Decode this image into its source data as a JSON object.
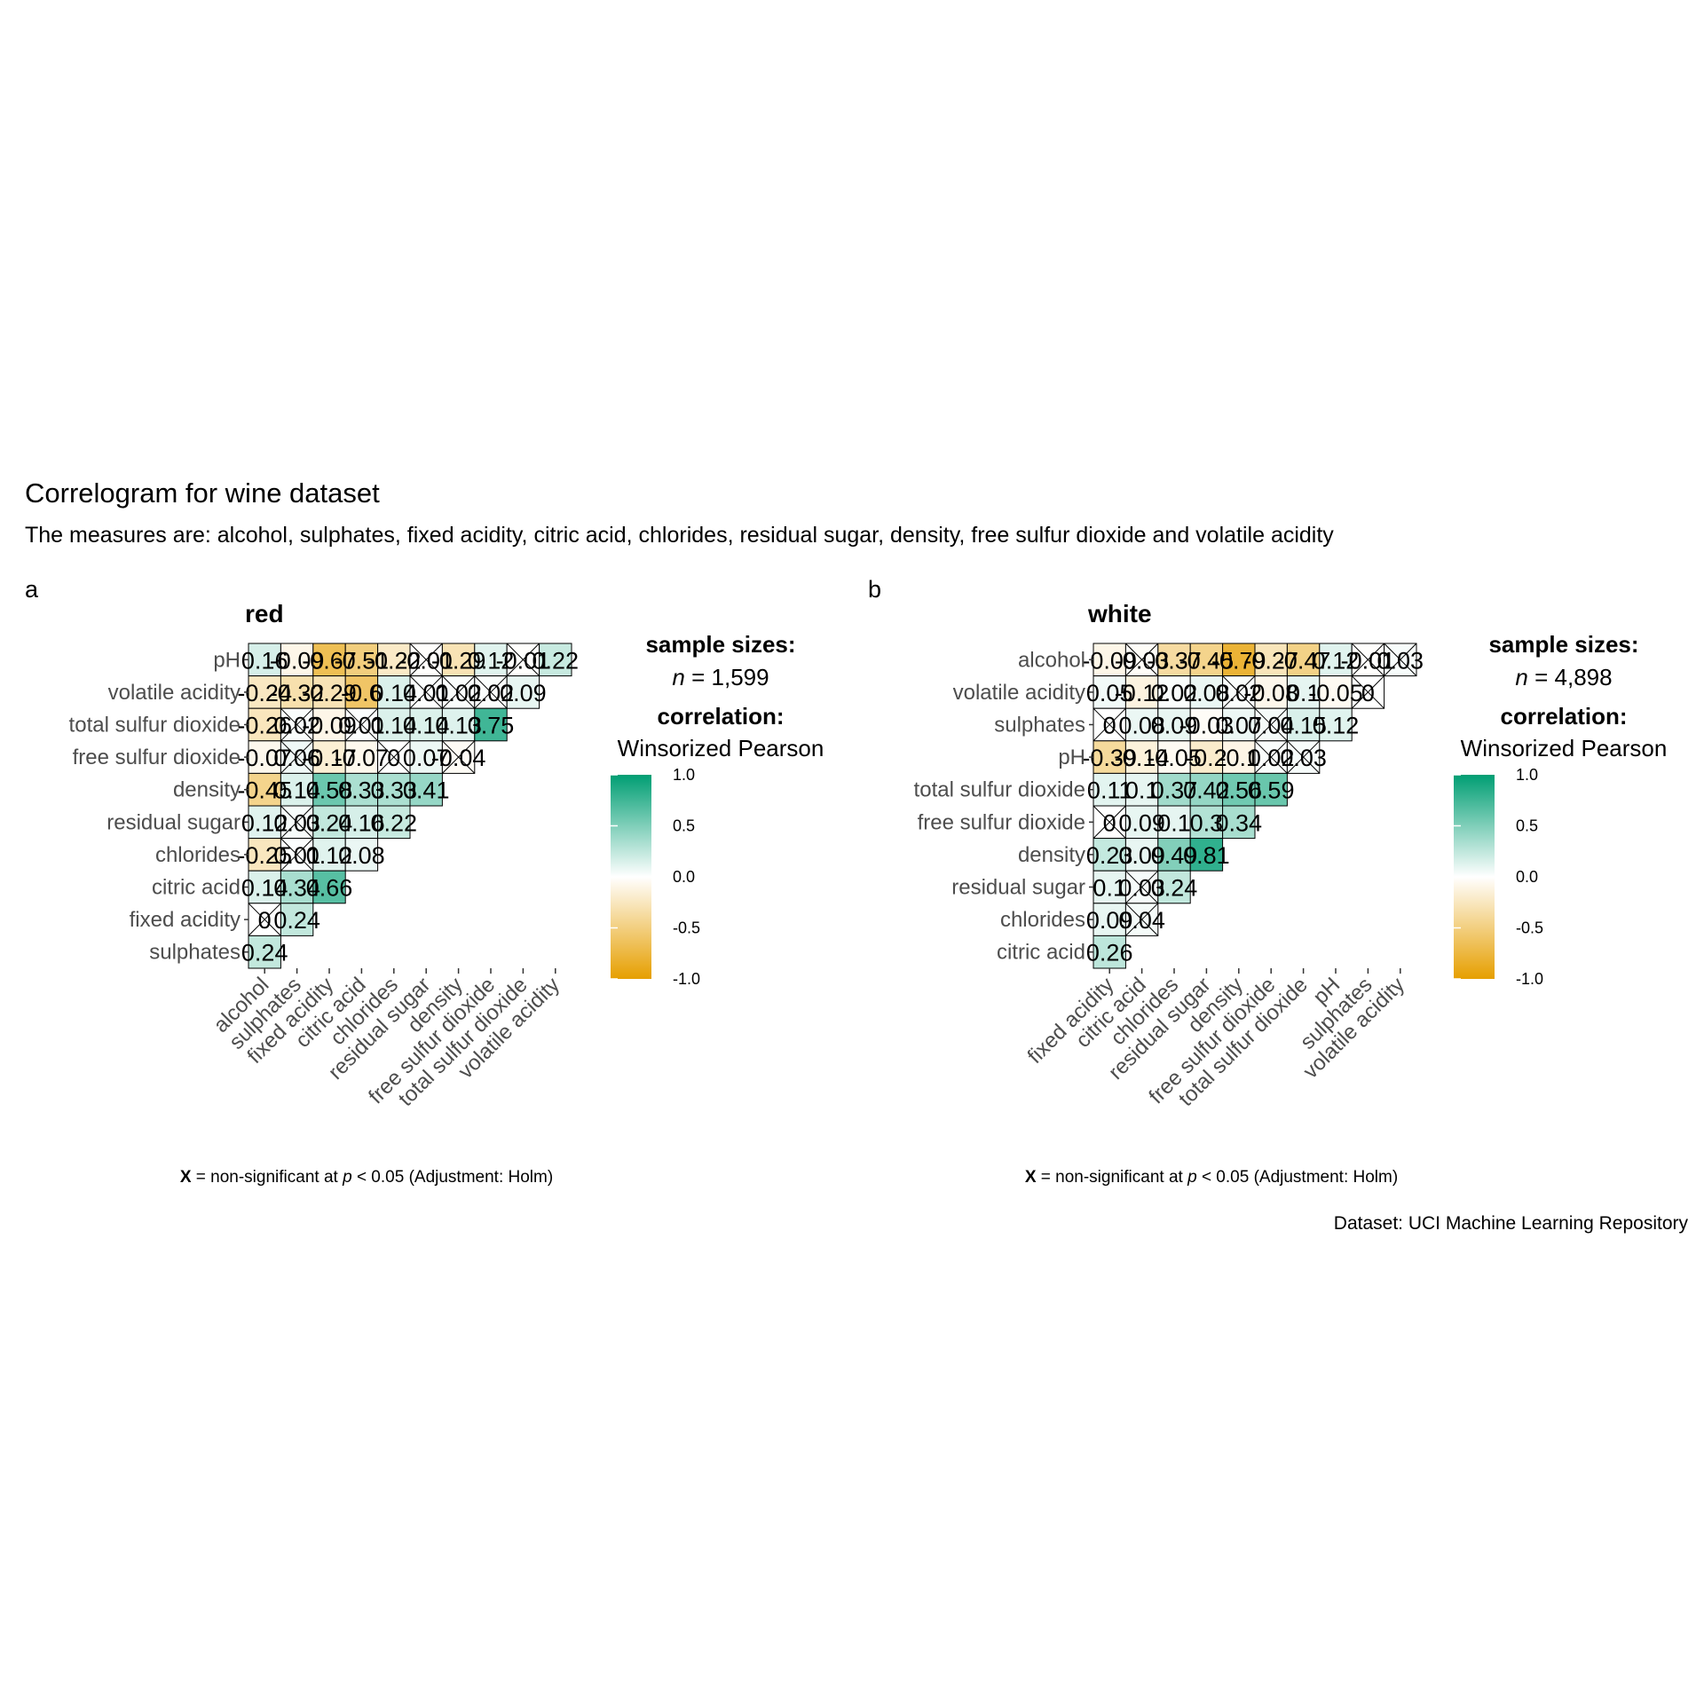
{
  "title": "Correlogram for wine dataset",
  "subtitle": "The measures are: alcohol, sulphates, fixed acidity, citric acid, chlorides, residual sugar, density, free sulfur dioxide and volatile acidity",
  "caption": "Dataset: UCI Machine Learning Repository",
  "colors": {
    "negative": "#E69F00",
    "zero": "#FFFFFF",
    "positive": "#009E73",
    "border": "#000000"
  },
  "chart_data": [
    {
      "type": "heatmap",
      "tag": "a",
      "title": "red",
      "sample_label": "sample sizes:",
      "sample_n_prefix": "n",
      "sample_n_value": "= 1,599",
      "legend_title": "correlation:",
      "legend_subtitle": "Winsorized Pearson",
      "legend_ticks": [
        "1.0",
        "0.5",
        "0.0",
        "-0.5",
        "-1.0"
      ],
      "legend_range": [
        -1,
        1
      ],
      "footnote_symbol": "X",
      "footnote_text_1": "= non-significant at",
      "footnote_p": "p",
      "footnote_text_2": "< 0.05 (Adjustment: Holm)",
      "rows": [
        "pH",
        "volatile acidity",
        "total sulfur dioxide",
        "free sulfur dioxide",
        "density",
        "residual sugar",
        "chlorides",
        "citric acid",
        "fixed acidity",
        "sulphates"
      ],
      "columns": [
        "alcohol",
        "sulphates",
        "fixed acidity",
        "citric acid",
        "chlorides",
        "residual sugar",
        "density",
        "free sulfur dioxide",
        "total sulfur dioxide",
        "volatile acidity"
      ],
      "cells": [
        [
          0.16,
          -0.09,
          -0.67,
          -0.51,
          -0.22,
          -0.01,
          -0.29,
          0.12,
          -0.01,
          0.22
        ],
        [
          -0.24,
          -0.32,
          -0.29,
          -0.6,
          0.14,
          0.01,
          0.02,
          0.02,
          0.09,
          null
        ],
        [
          -0.26,
          0.02,
          -0.09,
          0.01,
          0.14,
          0.14,
          0.13,
          0.75,
          null,
          null
        ],
        [
          -0.07,
          0.06,
          -0.17,
          -0.07,
          0,
          0.07,
          -0.04,
          null,
          null,
          null
        ],
        [
          -0.45,
          0.14,
          0.58,
          0.33,
          0.33,
          0.41,
          null,
          null,
          null,
          null
        ],
        [
          0.12,
          0.03,
          0.24,
          0.16,
          0.22,
          null,
          null,
          null,
          null,
          null
        ],
        [
          -0.25,
          0.01,
          0.12,
          0.08,
          null,
          null,
          null,
          null,
          null,
          null
        ],
        [
          0.14,
          0.34,
          0.66,
          null,
          null,
          null,
          null,
          null,
          null,
          null
        ],
        [
          0,
          0.24,
          null,
          null,
          null,
          null,
          null,
          null,
          null,
          null
        ],
        [
          0.24,
          null,
          null,
          null,
          null,
          null,
          null,
          null,
          null,
          null
        ]
      ],
      "labels": [
        [
          "0.16",
          "-0.09",
          "-0.67",
          "-0.51",
          "-0.22",
          "-0.01",
          "-0.29",
          "0.12",
          "-0.01",
          "0.22"
        ],
        [
          "-0.24",
          "-0.32",
          "-0.29",
          "-0.6",
          "0.14",
          "0.01",
          "0.02",
          "0.02",
          "0.09",
          ""
        ],
        [
          "-0.26",
          "0.02",
          "-0.09",
          "0.01",
          "0.14",
          "0.14",
          "0.13",
          "0.75",
          "",
          ""
        ],
        [
          "-0.07",
          "0.06",
          "-0.17",
          "-0.07",
          "0",
          "0.07",
          "-0.04",
          "",
          "",
          ""
        ],
        [
          "-0.45",
          "0.14",
          "0.58",
          "0.33",
          "0.33",
          "0.41",
          "",
          "",
          "",
          ""
        ],
        [
          "0.12",
          "0.03",
          "0.24",
          "0.16",
          "0.22",
          "",
          "",
          "",
          "",
          ""
        ],
        [
          "-0.25",
          "0.01",
          "0.12",
          "0.08",
          "",
          "",
          "",
          "",
          "",
          ""
        ],
        [
          "0.14",
          "0.34",
          "0.66",
          "",
          "",
          "",
          "",
          "",
          "",
          ""
        ],
        [
          "0",
          "0.24",
          "",
          "",
          "",
          "",
          "",
          "",
          "",
          ""
        ],
        [
          "0.24",
          "",
          "",
          "",
          "",
          "",
          "",
          "",
          "",
          ""
        ]
      ],
      "nonsignificant": [
        [
          false,
          false,
          false,
          false,
          false,
          true,
          false,
          false,
          true,
          false
        ],
        [
          false,
          false,
          false,
          false,
          false,
          true,
          true,
          true,
          false,
          false
        ],
        [
          false,
          true,
          false,
          true,
          false,
          false,
          false,
          false,
          false,
          false
        ],
        [
          false,
          true,
          false,
          false,
          true,
          false,
          true,
          false,
          false,
          false
        ],
        [
          false,
          false,
          false,
          false,
          false,
          false,
          false,
          false,
          false,
          false
        ],
        [
          false,
          true,
          false,
          false,
          false,
          false,
          false,
          false,
          false,
          false
        ],
        [
          false,
          true,
          false,
          false,
          false,
          false,
          false,
          false,
          false,
          false
        ],
        [
          false,
          false,
          false,
          false,
          false,
          false,
          false,
          false,
          false,
          false
        ],
        [
          true,
          false,
          false,
          false,
          false,
          false,
          false,
          false,
          false,
          false
        ],
        [
          false,
          false,
          false,
          false,
          false,
          false,
          false,
          false,
          false,
          false
        ]
      ]
    },
    {
      "type": "heatmap",
      "tag": "b",
      "title": "white",
      "sample_label": "sample sizes:",
      "sample_n_prefix": "n",
      "sample_n_value": "= 4,898",
      "legend_title": "correlation:",
      "legend_subtitle": "Winsorized Pearson",
      "legend_ticks": [
        "1.0",
        "0.5",
        "0.0",
        "-0.5",
        "-1.0"
      ],
      "legend_range": [
        -1,
        1
      ],
      "footnote_symbol": "X",
      "footnote_text_1": "= non-significant at",
      "footnote_p": "p",
      "footnote_text_2": "< 0.05 (Adjustment: Holm)",
      "rows": [
        "alcohol",
        "volatile acidity",
        "sulphates",
        "pH",
        "total sulfur dioxide",
        "free sulfur dioxide",
        "density",
        "residual sugar",
        "chlorides",
        "citric acid"
      ],
      "columns": [
        "fixed acidity",
        "citric acid",
        "chlorides",
        "residual sugar",
        "density",
        "free sulfur dioxide",
        "total sulfur dioxide",
        "pH",
        "sulphates",
        "volatile acidity"
      ],
      "cells": [
        [
          -0.09,
          -0.03,
          -0.37,
          -0.45,
          -0.79,
          -0.27,
          -0.47,
          0.12,
          -0.01,
          0.03
        ],
        [
          0.05,
          -0.12,
          0.02,
          0.08,
          0.02,
          -0.08,
          0.1,
          -0.05,
          0,
          null
        ],
        [
          0,
          0.08,
          0.09,
          -0.03,
          0.07,
          0.04,
          0.15,
          0.12,
          null,
          null
        ],
        [
          -0.39,
          -0.14,
          -0.05,
          -0.2,
          -0.1,
          0.02,
          0.03,
          null,
          null,
          null
        ],
        [
          0.11,
          0.1,
          0.37,
          0.42,
          0.56,
          0.59,
          null,
          null,
          null,
          null
        ],
        [
          0,
          0.09,
          0.1,
          0.3,
          0.34,
          null,
          null,
          null,
          null,
          null
        ],
        [
          0.23,
          0.09,
          0.49,
          0.81,
          null,
          null,
          null,
          null,
          null,
          null
        ],
        [
          0.1,
          0.03,
          0.24,
          null,
          null,
          null,
          null,
          null,
          null,
          null
        ],
        [
          0.09,
          0.04,
          null,
          null,
          null,
          null,
          null,
          null,
          null,
          null
        ],
        [
          0.26,
          null,
          null,
          null,
          null,
          null,
          null,
          null,
          null,
          null
        ]
      ],
      "labels": [
        [
          "-0.09",
          "-0.03",
          "-0.37",
          "-0.45",
          "-0.79",
          "-0.27",
          "-0.47",
          "0.12",
          "-0.01",
          "0.03"
        ],
        [
          "0.05",
          "-0.12",
          "0.02",
          "0.08",
          "0.02",
          "-0.08",
          "0.1",
          "-0.05",
          "0",
          ""
        ],
        [
          "0",
          "0.08",
          "0.09",
          "-0.03",
          "0.07",
          "0.04",
          "0.15",
          "0.12",
          "",
          ""
        ],
        [
          "-0.39",
          "-0.14",
          "-0.05",
          "-0.2",
          "-0.1",
          "0.02",
          "0.03",
          "",
          "",
          ""
        ],
        [
          "0.11",
          "0.1",
          "0.37",
          "0.42",
          "0.56",
          "0.59",
          "",
          "",
          "",
          ""
        ],
        [
          "0",
          "0.09",
          "0.1",
          "0.3",
          "0.34",
          "",
          "",
          "",
          "",
          ""
        ],
        [
          "0.23",
          "0.09",
          "0.49",
          "0.81",
          "",
          "",
          "",
          "",
          "",
          ""
        ],
        [
          "0.1",
          "0.03",
          "0.24",
          "",
          "",
          "",
          "",
          "",
          "",
          ""
        ],
        [
          "0.09",
          "0.04",
          "",
          "",
          "",
          "",
          "",
          "",
          "",
          ""
        ],
        [
          "0.26",
          "",
          "",
          "",
          "",
          "",
          "",
          "",
          "",
          ""
        ]
      ],
      "nonsignificant": [
        [
          false,
          true,
          false,
          false,
          false,
          false,
          false,
          false,
          true,
          true
        ],
        [
          false,
          false,
          false,
          false,
          true,
          false,
          false,
          false,
          true,
          false
        ],
        [
          true,
          false,
          false,
          false,
          false,
          true,
          false,
          false,
          false,
          false
        ],
        [
          false,
          false,
          false,
          false,
          false,
          true,
          true,
          false,
          false,
          false
        ],
        [
          false,
          false,
          false,
          false,
          false,
          false,
          false,
          false,
          false,
          false
        ],
        [
          true,
          false,
          false,
          false,
          false,
          false,
          false,
          false,
          false,
          false
        ],
        [
          false,
          false,
          false,
          false,
          false,
          false,
          false,
          false,
          false,
          false
        ],
        [
          false,
          true,
          false,
          false,
          false,
          false,
          false,
          false,
          false,
          false
        ],
        [
          false,
          true,
          false,
          false,
          false,
          false,
          false,
          false,
          false,
          false
        ],
        [
          false,
          false,
          false,
          false,
          false,
          false,
          false,
          false,
          false,
          false
        ]
      ]
    }
  ]
}
